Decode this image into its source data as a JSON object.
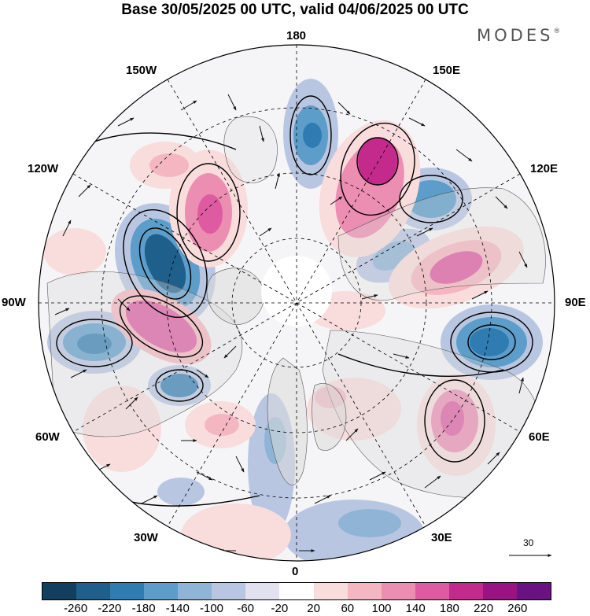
{
  "title": "Base 30/05/2025 00 UTC, valid 04/06/2025 00 UTC",
  "brand": "MODES",
  "brand_mark": "®",
  "longitude_labels": {
    "top": "180",
    "bottom": "0",
    "left": "90W",
    "right": "90E",
    "upper_left_1": "150W",
    "upper_left_2": "120W",
    "upper_right_1": "150E",
    "upper_right_2": "120E",
    "lower_left_1": "60W",
    "lower_left_2": "30W",
    "lower_right_1": "60E",
    "lower_right_2": "30E"
  },
  "reference_vector_label": "30",
  "colorbar": {
    "colors": [
      "#123f5e",
      "#1f5f8c",
      "#2f7cb2",
      "#5d9dc9",
      "#8fb4d6",
      "#b9c6e2",
      "#e1e1f0",
      "#ffffff",
      "#f9dcdc",
      "#f4b7c1",
      "#ec8eb2",
      "#de5aa1",
      "#c32a8c",
      "#9a1383",
      "#6a1283"
    ],
    "ticks": [
      "-260",
      "-220",
      "-180",
      "-140",
      "-100",
      "-60",
      "-20",
      "20",
      "60",
      "100",
      "140",
      "180",
      "220",
      "260"
    ]
  },
  "colors": {
    "land": "#dadada",
    "positive_fill": "#ec8eb2",
    "negative_fill": "#5d9dc9"
  }
}
